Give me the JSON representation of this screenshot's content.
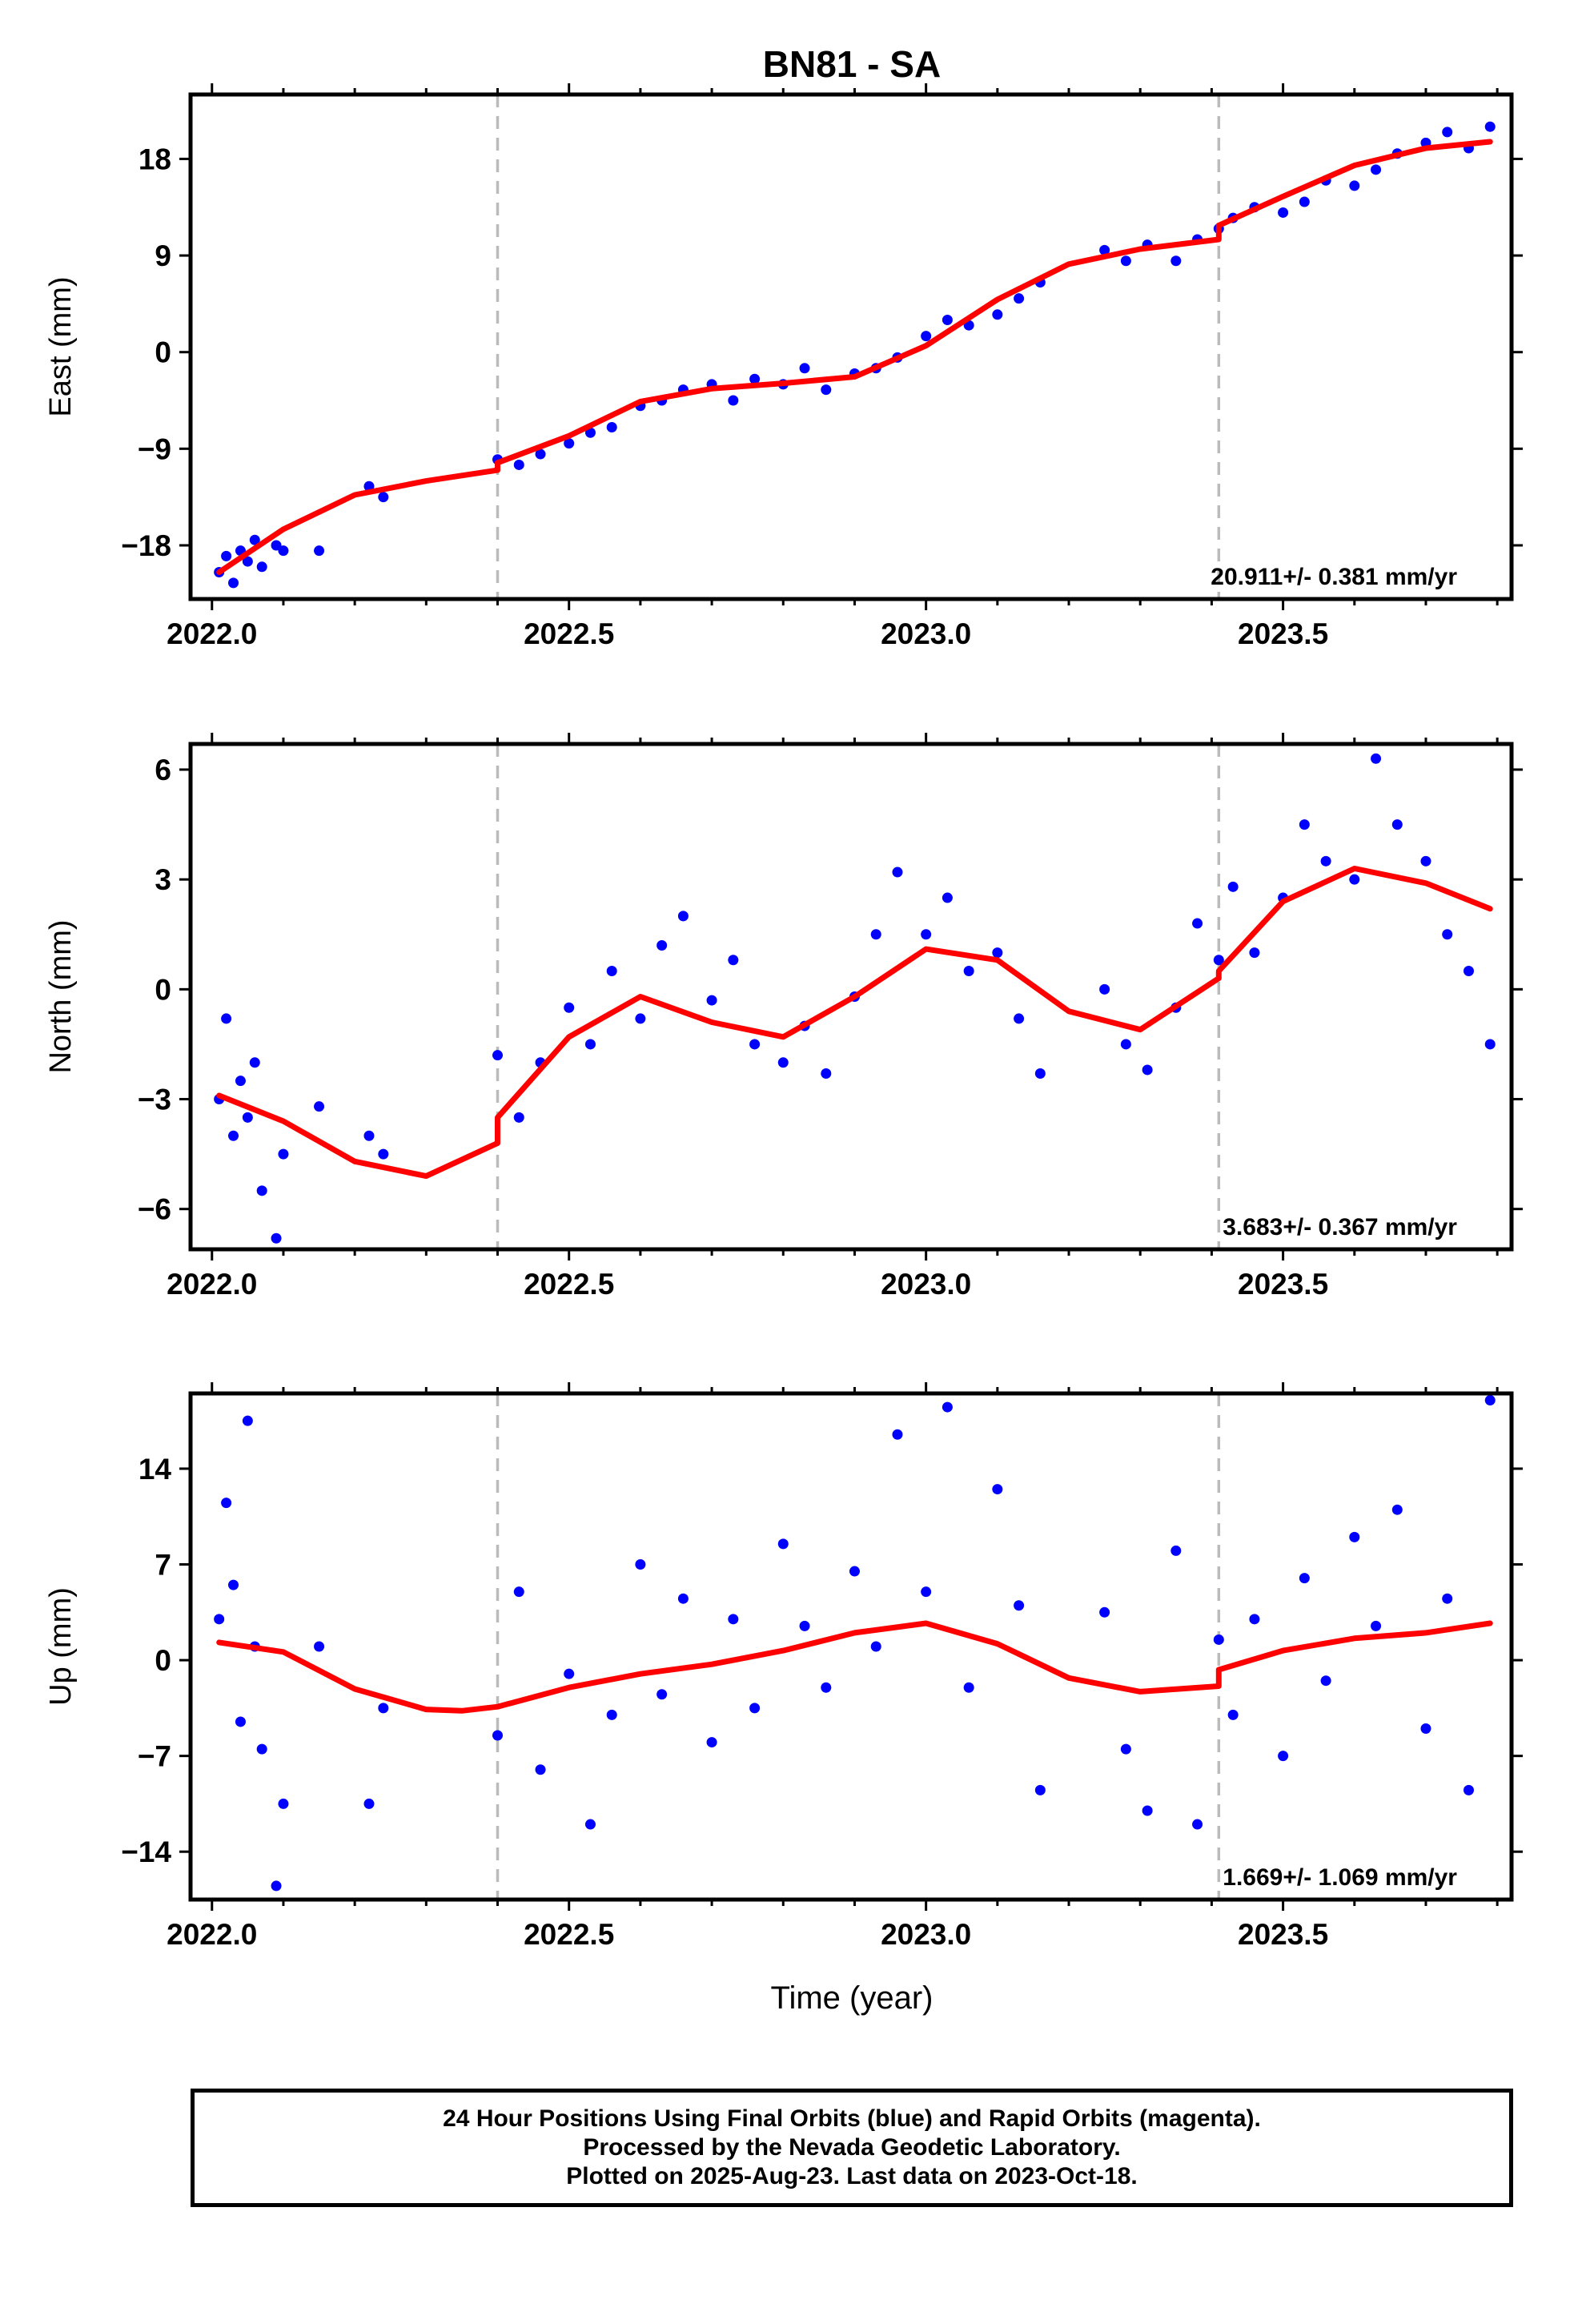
{
  "title": "BN81 - SA",
  "footer": {
    "line1": "24 Hour Positions Using Final Orbits (blue) and Rapid Orbits (magenta).",
    "line2": "Processed by the Nevada Geodetic Laboratory.",
    "line3": "Plotted on 2025-Aug-23. Last data on 2023-Oct-18."
  },
  "colors": {
    "points": "#0000ff",
    "model": "#ff0000",
    "offset_lines": "#bbbbbb"
  },
  "chart_data": [
    {
      "type": "scatter",
      "ylabel": "East (mm)",
      "xlabel": "",
      "xlim": [
        2021.97,
        2023.82
      ],
      "ylim": [
        -23,
        24
      ],
      "xticks": [
        2022.0,
        2022.5,
        2023.0,
        2023.5
      ],
      "xtick_labels": [
        "2022.0",
        "2022.5",
        "2023.0",
        "2023.5"
      ],
      "yticks": [
        -18,
        -9,
        0,
        9,
        18
      ],
      "ytick_labels": [
        "−18",
        "−9",
        "0",
        "9",
        "18"
      ],
      "offsets": [
        2022.4,
        2023.41
      ],
      "rate_label": "20.911+/- 0.381 mm/yr",
      "series": [
        {
          "kind": "points",
          "x": [
            2022.01,
            2022.02,
            2022.03,
            2022.04,
            2022.05,
            2022.06,
            2022.07,
            2022.09,
            2022.1,
            2022.15,
            2022.22,
            2022.24,
            2022.4,
            2022.43,
            2022.46,
            2022.5,
            2022.53,
            2022.56,
            2022.6,
            2022.63,
            2022.66,
            2022.7,
            2022.73,
            2022.76,
            2022.8,
            2022.83,
            2022.86,
            2022.9,
            2022.93,
            2022.96,
            2023.0,
            2023.03,
            2023.06,
            2023.1,
            2023.13,
            2023.16,
            2023.25,
            2023.28,
            2023.31,
            2023.35,
            2023.38,
            2023.41,
            2023.43,
            2023.46,
            2023.5,
            2023.53,
            2023.56,
            2023.6,
            2023.63,
            2023.66,
            2023.7,
            2023.73,
            2023.76,
            2023.79
          ],
          "y": [
            -20.5,
            -19.0,
            -21.5,
            -18.5,
            -19.5,
            -17.5,
            -20.0,
            -18.0,
            -18.5,
            -18.5,
            -12.5,
            -13.5,
            -10.0,
            -10.5,
            -9.5,
            -8.5,
            -7.5,
            -7.0,
            -5.0,
            -4.5,
            -3.5,
            -3.0,
            -4.5,
            -2.5,
            -3.0,
            -1.5,
            -3.5,
            -2.0,
            -1.5,
            -0.5,
            1.5,
            3.0,
            2.5,
            3.5,
            5.0,
            6.5,
            9.5,
            8.5,
            10.0,
            8.5,
            10.5,
            11.5,
            12.5,
            13.5,
            13.0,
            14.0,
            16.0,
            15.5,
            17.0,
            18.5,
            19.5,
            20.5,
            19.0,
            21.0
          ]
        },
        {
          "kind": "line",
          "x": [
            2022.01,
            2022.1,
            2022.2,
            2022.3,
            2022.4,
            2022.4,
            2022.5,
            2022.6,
            2022.7,
            2022.8,
            2022.9,
            2023.0,
            2023.1,
            2023.2,
            2023.3,
            2023.41,
            2023.41,
            2023.5,
            2023.6,
            2023.7,
            2023.79
          ],
          "y": [
            -20.5,
            -16.5,
            -13.3,
            -12.0,
            -11.0,
            -10.3,
            -7.8,
            -4.6,
            -3.4,
            -2.9,
            -2.3,
            0.6,
            4.9,
            8.2,
            9.6,
            10.5,
            11.8,
            14.5,
            17.4,
            19.0,
            19.6
          ]
        }
      ]
    },
    {
      "type": "scatter",
      "ylabel": "North (mm)",
      "xlabel": "",
      "xlim": [
        2021.97,
        2023.82
      ],
      "ylim": [
        -7.1,
        6.7
      ],
      "xticks": [
        2022.0,
        2022.5,
        2023.0,
        2023.5
      ],
      "xtick_labels": [
        "2022.0",
        "2022.5",
        "2023.0",
        "2023.5"
      ],
      "yticks": [
        -6,
        -3,
        0,
        3,
        6
      ],
      "ytick_labels": [
        "−6",
        "−3",
        "0",
        "3",
        "6"
      ],
      "offsets": [
        2022.4,
        2023.41
      ],
      "rate_label": "3.683+/- 0.367 mm/yr",
      "series": [
        {
          "kind": "points",
          "x": [
            2022.01,
            2022.02,
            2022.03,
            2022.04,
            2022.05,
            2022.06,
            2022.07,
            2022.09,
            2022.1,
            2022.15,
            2022.22,
            2022.24,
            2022.4,
            2022.43,
            2022.46,
            2022.5,
            2022.53,
            2022.56,
            2022.6,
            2022.63,
            2022.66,
            2022.7,
            2022.73,
            2022.76,
            2022.8,
            2022.83,
            2022.86,
            2022.9,
            2022.93,
            2022.96,
            2023.0,
            2023.03,
            2023.06,
            2023.1,
            2023.13,
            2023.16,
            2023.25,
            2023.28,
            2023.31,
            2023.35,
            2023.38,
            2023.41,
            2023.43,
            2023.46,
            2023.5,
            2023.53,
            2023.56,
            2023.6,
            2023.63,
            2023.66,
            2023.7,
            2023.73,
            2023.76,
            2023.79
          ],
          "y": [
            -3.0,
            -0.8,
            -4.0,
            -2.5,
            -3.5,
            -2.0,
            -5.5,
            -6.8,
            -4.5,
            -3.2,
            -4.0,
            -4.5,
            -1.8,
            -3.5,
            -2.0,
            -0.5,
            -1.5,
            0.5,
            -0.8,
            1.2,
            2.0,
            -0.3,
            0.8,
            -1.5,
            -2.0,
            -1.0,
            -2.3,
            -0.2,
            1.5,
            3.2,
            1.5,
            2.5,
            0.5,
            1.0,
            -0.8,
            -2.3,
            0.0,
            -1.5,
            -2.2,
            -0.5,
            1.8,
            0.8,
            2.8,
            1.0,
            2.5,
            4.5,
            3.5,
            3.0,
            6.3,
            4.5,
            3.5,
            1.5,
            0.5,
            -1.5
          ]
        },
        {
          "kind": "line",
          "x": [
            2022.01,
            2022.1,
            2022.2,
            2022.3,
            2022.4,
            2022.4,
            2022.5,
            2022.6,
            2022.7,
            2022.8,
            2022.9,
            2023.0,
            2023.1,
            2023.2,
            2023.3,
            2023.41,
            2023.41,
            2023.5,
            2023.6,
            2023.7,
            2023.79
          ],
          "y": [
            -2.9,
            -3.6,
            -4.7,
            -5.1,
            -4.2,
            -3.5,
            -1.3,
            -0.2,
            -0.9,
            -1.3,
            -0.2,
            1.1,
            0.8,
            -0.6,
            -1.1,
            0.3,
            0.5,
            2.4,
            3.3,
            2.9,
            2.2
          ]
        }
      ]
    },
    {
      "type": "scatter",
      "ylabel": "Up (mm)",
      "xlabel": "Time (year)",
      "xlim": [
        2021.97,
        2023.82
      ],
      "ylim": [
        -17.5,
        19.5
      ],
      "xticks": [
        2022.0,
        2022.5,
        2023.0,
        2023.5
      ],
      "xtick_labels": [
        "2022.0",
        "2022.5",
        "2023.0",
        "2023.5"
      ],
      "yticks": [
        -14,
        -7,
        0,
        7,
        14
      ],
      "ytick_labels": [
        "−14",
        "−7",
        "0",
        "7",
        "14"
      ],
      "offsets": [
        2022.4,
        2023.41
      ],
      "rate_label": "1.669+/- 1.069 mm/yr",
      "series": [
        {
          "kind": "points",
          "x": [
            2022.01,
            2022.02,
            2022.03,
            2022.04,
            2022.05,
            2022.06,
            2022.07,
            2022.09,
            2022.1,
            2022.15,
            2022.22,
            2022.24,
            2022.4,
            2022.43,
            2022.46,
            2022.5,
            2022.53,
            2022.56,
            2022.6,
            2022.63,
            2022.66,
            2022.7,
            2022.73,
            2022.76,
            2022.8,
            2022.83,
            2022.86,
            2022.9,
            2022.93,
            2022.96,
            2023.0,
            2023.03,
            2023.06,
            2023.1,
            2023.13,
            2023.16,
            2023.25,
            2023.28,
            2023.31,
            2023.35,
            2023.38,
            2023.41,
            2023.43,
            2023.46,
            2023.5,
            2023.53,
            2023.56,
            2023.6,
            2023.63,
            2023.66,
            2023.7,
            2023.73,
            2023.76,
            2023.79
          ],
          "y": [
            3.0,
            11.5,
            5.5,
            -4.5,
            17.5,
            1.0,
            -6.5,
            -16.5,
            -10.5,
            1.0,
            -10.5,
            -3.5,
            -5.5,
            5.0,
            -8.0,
            -1.0,
            -12.0,
            -4.0,
            7.0,
            -2.5,
            4.5,
            -6.0,
            3.0,
            -3.5,
            8.5,
            2.5,
            -2.0,
            6.5,
            1.0,
            16.5,
            5.0,
            18.5,
            -2.0,
            12.5,
            4.0,
            -9.5,
            3.5,
            -6.5,
            -11.0,
            8.0,
            -12.0,
            1.5,
            -4.0,
            3.0,
            -7.0,
            6.0,
            -1.5,
            9.0,
            2.5,
            11.0,
            -5.0,
            4.5,
            -9.5,
            19.0
          ]
        },
        {
          "kind": "line",
          "x": [
            2022.01,
            2022.1,
            2022.2,
            2022.3,
            2022.35,
            2022.4,
            2022.5,
            2022.6,
            2022.7,
            2022.8,
            2022.9,
            2023.0,
            2023.1,
            2023.2,
            2023.3,
            2023.41,
            2023.41,
            2023.5,
            2023.6,
            2023.7,
            2023.79
          ],
          "y": [
            1.3,
            0.6,
            -2.1,
            -3.6,
            -3.7,
            -3.4,
            -2.0,
            -1.0,
            -0.3,
            0.7,
            2.0,
            2.7,
            1.2,
            -1.3,
            -2.3,
            -1.9,
            -0.7,
            0.7,
            1.6,
            2.0,
            2.7
          ]
        }
      ]
    }
  ]
}
